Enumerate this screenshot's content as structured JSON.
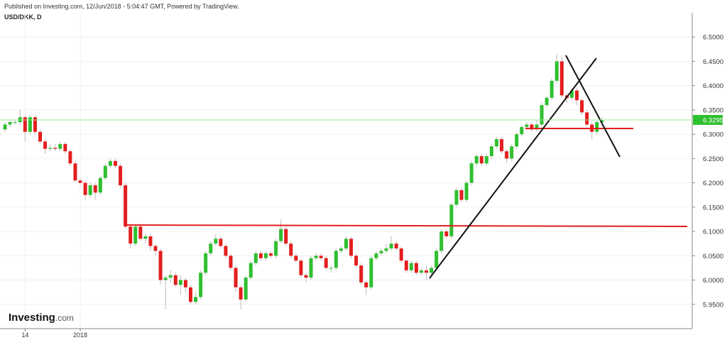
{
  "chart_data": {
    "type": "candlestick",
    "title": "Published on Investing.com, 12/Jun/2018 - 5:04:47 GMT, Powered by TradingView.",
    "subtitle": "USD/DKK, D",
    "logo": {
      "brand": "Investing",
      "suffix": ".com"
    },
    "up_color": "#2fbf2f",
    "down_color": "#e31e1e",
    "grid": true,
    "ylim": [
      5.9,
      6.55
    ],
    "yticks": [
      {
        "value": 5.95,
        "label": "5.9500"
      },
      {
        "value": 6.0,
        "label": "6.0000"
      },
      {
        "value": 6.05,
        "label": "6.0500"
      },
      {
        "value": 6.1,
        "label": "6.1000"
      },
      {
        "value": 6.15,
        "label": "6.1500"
      },
      {
        "value": 6.2,
        "label": "6.2000"
      },
      {
        "value": 6.25,
        "label": "6.2500"
      },
      {
        "value": 6.3,
        "label": "6.3000"
      },
      {
        "value": 6.35,
        "label": "6.3500"
      },
      {
        "value": 6.4,
        "label": "6.4000"
      },
      {
        "value": 6.45,
        "label": "6.4500"
      },
      {
        "value": 6.5,
        "label": "6.5000"
      }
    ],
    "xlim": [
      -1,
      137
    ],
    "last_price": 6.3295,
    "last_price_color": "#9be89b",
    "categories": [
      null,
      null,
      null,
      null,
      "14",
      null,
      null,
      null,
      null,
      null,
      null,
      null,
      null,
      null,
      null,
      "2018",
      null,
      null,
      null,
      null,
      null,
      null,
      null,
      null,
      null,
      null,
      null,
      null,
      null,
      null,
      null,
      null,
      null,
      null,
      null,
      null,
      null,
      null,
      null,
      null,
      null,
      null,
      null,
      null,
      null,
      null,
      null,
      null,
      null,
      null,
      null,
      null,
      null,
      null,
      null,
      null,
      null,
      null,
      null,
      null,
      null,
      null,
      null,
      null,
      null,
      null,
      null,
      null,
      null,
      null,
      null,
      null,
      null,
      null,
      null,
      null,
      null,
      null,
      null,
      null,
      null,
      null,
      null,
      null,
      null,
      null,
      null,
      null,
      null,
      null,
      null,
      null,
      null,
      null,
      null,
      null,
      null,
      null,
      null,
      null,
      null,
      null,
      null,
      null,
      null,
      null,
      null,
      null,
      null,
      null,
      null,
      null,
      null,
      null,
      null,
      null,
      null,
      null,
      null,
      null
    ],
    "open": [
      6.31,
      6.32,
      6.325,
      6.325,
      6.335,
      6.305,
      6.335,
      6.305,
      6.285,
      6.27,
      6.272,
      6.27,
      6.28,
      6.265,
      6.24,
      6.205,
      6.2,
      6.175,
      6.195,
      6.18,
      6.21,
      6.235,
      6.245,
      6.235,
      6.195,
      6.11,
      6.075,
      6.11,
      6.085,
      6.09,
      6.07,
      6.06,
      6.0,
      6.005,
      6.01,
      5.99,
      6.0,
      5.985,
      5.955,
      5.965,
      6.015,
      6.055,
      6.075,
      6.085,
      6.07,
      6.05,
      6.025,
      5.985,
      5.96,
      6.005,
      6.035,
      6.055,
      6.045,
      6.055,
      6.05,
      6.08,
      6.105,
      6.075,
      6.05,
      6.04,
      6.01,
      6.005,
      6.045,
      6.05,
      6.045,
      6.025,
      6.025,
      6.06,
      6.065,
      6.085,
      6.05,
      6.03,
      5.995,
      5.985,
      6.045,
      6.055,
      6.06,
      6.065,
      6.075,
      6.065,
      6.04,
      6.02,
      6.035,
      6.015,
      6.02,
      6.015,
      6.025,
      6.06,
      6.1,
      6.09,
      6.155,
      6.185,
      6.165,
      6.2,
      6.24,
      6.255,
      6.24,
      6.255,
      6.275,
      6.29,
      6.265,
      6.25,
      6.275,
      6.3,
      6.315,
      6.32,
      6.31,
      6.32,
      6.36,
      6.375,
      6.41,
      6.45,
      6.38,
      6.375,
      6.39,
      6.37,
      6.345,
      6.32,
      6.305,
      6.325
    ],
    "high": [
      6.325,
      6.33,
      6.33,
      6.35,
      6.34,
      6.34,
      6.34,
      6.31,
      6.29,
      6.28,
      6.28,
      6.285,
      6.285,
      6.27,
      6.245,
      6.21,
      6.205,
      6.2,
      6.2,
      6.215,
      6.24,
      6.25,
      6.25,
      6.24,
      6.2,
      6.115,
      6.115,
      6.115,
      6.095,
      6.095,
      6.075,
      6.065,
      6.01,
      6.02,
      6.015,
      6.01,
      6.005,
      5.99,
      5.975,
      6.02,
      6.06,
      6.08,
      6.095,
      6.09,
      6.075,
      6.055,
      6.03,
      5.99,
      6.01,
      6.04,
      6.06,
      6.06,
      6.06,
      6.06,
      6.085,
      6.125,
      6.11,
      6.08,
      6.055,
      6.045,
      6.015,
      6.05,
      6.055,
      6.055,
      6.05,
      6.03,
      6.065,
      6.07,
      6.09,
      6.09,
      6.055,
      6.035,
      6.0,
      6.05,
      6.06,
      6.065,
      6.075,
      6.09,
      6.08,
      6.07,
      6.045,
      6.04,
      6.04,
      6.025,
      6.03,
      6.03,
      6.065,
      6.105,
      6.105,
      6.16,
      6.19,
      6.19,
      6.205,
      6.245,
      6.26,
      6.26,
      6.26,
      6.28,
      6.295,
      6.295,
      6.27,
      6.28,
      6.305,
      6.32,
      6.325,
      6.325,
      6.33,
      6.365,
      6.38,
      6.415,
      6.465,
      6.46,
      6.385,
      6.395,
      6.395,
      6.375,
      6.35,
      6.325,
      6.33,
      6.335
    ],
    "low": [
      6.305,
      6.315,
      6.32,
      6.32,
      6.285,
      6.3,
      6.3,
      6.28,
      6.26,
      6.265,
      6.265,
      6.265,
      6.26,
      6.235,
      6.2,
      6.195,
      6.165,
      6.17,
      6.165,
      6.175,
      6.205,
      6.23,
      6.23,
      6.19,
      6.105,
      6.065,
      6.07,
      6.08,
      6.075,
      6.06,
      6.05,
      5.99,
      5.94,
      5.995,
      5.985,
      5.97,
      5.975,
      5.95,
      5.95,
      5.96,
      6.01,
      6.05,
      6.07,
      6.065,
      6.045,
      6.02,
      5.975,
      5.94,
      5.955,
      6.0,
      6.03,
      6.04,
      6.04,
      6.045,
      6.045,
      6.075,
      6.07,
      6.045,
      6.035,
      6.005,
      5.995,
      6.0,
      6.04,
      6.04,
      6.02,
      6.015,
      6.02,
      6.055,
      6.06,
      6.045,
      6.025,
      5.99,
      5.97,
      5.98,
      6.04,
      6.05,
      6.055,
      6.06,
      6.06,
      6.035,
      6.015,
      6.015,
      6.01,
      6.01,
      6.0,
      6.01,
      6.02,
      6.055,
      6.085,
      6.085,
      6.15,
      6.16,
      6.16,
      6.195,
      6.235,
      6.235,
      6.235,
      6.25,
      6.27,
      6.26,
      6.24,
      6.245,
      6.27,
      6.295,
      6.31,
      6.305,
      6.305,
      6.315,
      6.355,
      6.37,
      6.405,
      6.375,
      6.365,
      6.37,
      6.36,
      6.34,
      6.315,
      6.29,
      6.3,
      6.315
    ],
    "close": [
      6.32,
      6.325,
      6.325,
      6.335,
      6.305,
      6.335,
      6.305,
      6.285,
      6.27,
      6.272,
      6.27,
      6.28,
      6.265,
      6.24,
      6.205,
      6.2,
      6.175,
      6.195,
      6.18,
      6.21,
      6.235,
      6.245,
      6.235,
      6.195,
      6.11,
      6.075,
      6.11,
      6.085,
      6.09,
      6.07,
      6.06,
      6.0,
      6.005,
      6.01,
      5.99,
      6.0,
      5.985,
      5.955,
      5.965,
      6.015,
      6.055,
      6.075,
      6.085,
      6.07,
      6.05,
      6.025,
      5.985,
      5.96,
      6.005,
      6.035,
      6.055,
      6.045,
      6.055,
      6.05,
      6.08,
      6.105,
      6.075,
      6.05,
      6.04,
      6.01,
      6.005,
      6.045,
      6.05,
      6.045,
      6.025,
      6.025,
      6.06,
      6.065,
      6.085,
      6.05,
      6.03,
      5.995,
      5.985,
      6.045,
      6.055,
      6.06,
      6.065,
      6.075,
      6.065,
      6.04,
      6.02,
      6.035,
      6.015,
      6.02,
      6.015,
      6.025,
      6.06,
      6.1,
      6.09,
      6.155,
      6.185,
      6.165,
      6.2,
      6.24,
      6.255,
      6.24,
      6.255,
      6.275,
      6.29,
      6.265,
      6.25,
      6.275,
      6.3,
      6.315,
      6.32,
      6.31,
      6.32,
      6.36,
      6.375,
      6.41,
      6.45,
      6.38,
      6.375,
      6.39,
      6.37,
      6.345,
      6.32,
      6.305,
      6.325,
      6.3295
    ]
  }
}
